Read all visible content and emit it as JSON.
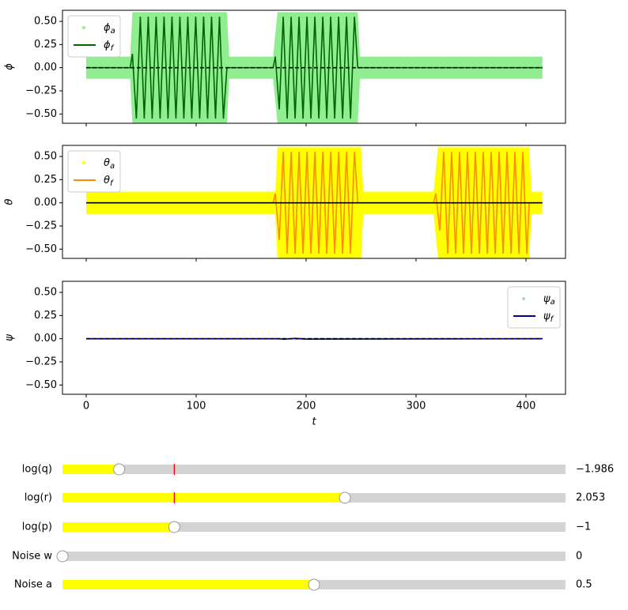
{
  "chart_data": [
    {
      "type": "line",
      "ylabel": "ϕ",
      "legend": "upper left",
      "grid": false,
      "xlim": [
        -21.6,
        436
      ],
      "ylim": [
        -0.6,
        0.62
      ],
      "xticks": [
        0,
        100,
        200,
        300,
        400
      ],
      "yticks": [
        {
          "value": -0.5,
          "label": "−0.50"
        },
        {
          "value": -0.25,
          "label": "−0.25"
        },
        {
          "value": 0,
          "label": "0.00"
        },
        {
          "value": 0.25,
          "label": "0.25"
        },
        {
          "value": 0.5,
          "label": "0.50"
        }
      ],
      "series": [
        {
          "name": "ϕ_a",
          "color": "#90ee90",
          "style": "band",
          "x": [
            0,
            40,
            42,
            128,
            130,
            170,
            174,
            247,
            249,
            415
          ],
          "high": [
            0.12,
            0.12,
            0.6,
            0.6,
            0.12,
            0.12,
            0.6,
            0.6,
            0.12,
            0.12
          ],
          "low": [
            -0.12,
            -0.12,
            -0.6,
            -0.6,
            -0.12,
            -0.12,
            -0.6,
            -0.6,
            -0.12,
            -0.12
          ]
        },
        {
          "name": "ϕ_f",
          "color": "#006400",
          "style": "line",
          "x": [
            0,
            40,
            42,
            45.6,
            49.2,
            52.8,
            56.4,
            60,
            63.6,
            67.2,
            70.8,
            74.4,
            78,
            81.6,
            85.2,
            88.8,
            92.4,
            96,
            99.6,
            103.2,
            106.8,
            110.4,
            114,
            117.6,
            121.2,
            124.8,
            128,
            170,
            172,
            175.6,
            179.2,
            182.8,
            186.4,
            190,
            193.6,
            197.2,
            200.8,
            204.4,
            208,
            211.6,
            215.2,
            218.8,
            222.4,
            226,
            229.6,
            233.2,
            236.8,
            240.4,
            244,
            247,
            415
          ],
          "values": [
            0,
            0,
            0.15,
            -0.55,
            0.55,
            -0.55,
            0.55,
            -0.55,
            0.55,
            -0.55,
            0.55,
            -0.55,
            0.55,
            -0.55,
            0.55,
            -0.55,
            0.55,
            -0.55,
            0.55,
            -0.55,
            0.55,
            -0.55,
            0.55,
            -0.55,
            0.55,
            -0.55,
            0,
            0,
            0.12,
            -0.45,
            0.55,
            -0.55,
            0.55,
            -0.55,
            0.55,
            -0.55,
            0.55,
            -0.55,
            0.55,
            -0.55,
            0.55,
            -0.55,
            0.55,
            -0.55,
            0.55,
            -0.55,
            0.55,
            -0.55,
            0.55,
            0,
            0
          ]
        },
        {
          "color": "#000000",
          "style": "line",
          "dash": true,
          "x": [
            0,
            415
          ],
          "values": [
            0,
            0
          ]
        }
      ]
    },
    {
      "type": "line",
      "ylabel": "θ",
      "legend": "upper left",
      "grid": false,
      "xlim": [
        -21.6,
        436
      ],
      "ylim": [
        -0.6,
        0.62
      ],
      "xticks": [
        0,
        100,
        200,
        300,
        400
      ],
      "yticks": [
        {
          "value": -0.5,
          "label": "−0.50"
        },
        {
          "value": -0.25,
          "label": "−0.25"
        },
        {
          "value": 0,
          "label": "0.00"
        },
        {
          "value": 0.25,
          "label": "0.25"
        },
        {
          "value": 0.5,
          "label": "0.50"
        }
      ],
      "series": [
        {
          "name": "θ_a",
          "color": "#ffff00",
          "style": "band",
          "x": [
            0,
            172,
            174,
            250,
            252,
            316,
            320,
            403,
            405,
            415
          ],
          "high": [
            0.12,
            0.12,
            0.6,
            0.6,
            0.12,
            0.12,
            0.6,
            0.6,
            0.12,
            0.12
          ],
          "low": [
            -0.12,
            -0.12,
            -0.6,
            -0.6,
            -0.12,
            -0.12,
            -0.6,
            -0.6,
            -0.12,
            -0.12
          ]
        },
        {
          "name": "θ_f",
          "color": "#ff8c00",
          "style": "line",
          "x": [
            0,
            170,
            172,
            175.6,
            179.2,
            182.8,
            186.4,
            190,
            193.6,
            197.2,
            200.8,
            204.4,
            208,
            211.6,
            215.2,
            218.8,
            222.4,
            226,
            229.6,
            233.2,
            236.8,
            240.4,
            244,
            247,
            316,
            318,
            321.6,
            325.2,
            328.8,
            332.4,
            336,
            339.6,
            343.2,
            346.8,
            350.4,
            354,
            357.6,
            361.2,
            364.8,
            368.4,
            372,
            375.6,
            379.2,
            382.8,
            386.4,
            390,
            393.6,
            397.2,
            400.8,
            403,
            415
          ],
          "values": [
            0,
            0,
            0.1,
            -0.4,
            0.55,
            -0.55,
            0.55,
            -0.55,
            0.55,
            -0.55,
            0.55,
            -0.55,
            0.55,
            -0.55,
            0.55,
            -0.55,
            0.55,
            -0.55,
            0.55,
            -0.55,
            0.55,
            -0.55,
            0.55,
            0,
            0,
            0.1,
            -0.3,
            0.55,
            -0.55,
            0.55,
            -0.55,
            0.55,
            -0.55,
            0.55,
            -0.55,
            0.55,
            -0.55,
            0.55,
            -0.55,
            0.55,
            -0.55,
            0.55,
            -0.55,
            0.55,
            -0.55,
            0.55,
            -0.55,
            0.55,
            -0.55,
            0,
            0
          ]
        },
        {
          "color": "#000000",
          "style": "line",
          "x": [
            0,
            415
          ],
          "values": [
            0,
            0
          ]
        }
      ]
    },
    {
      "type": "line",
      "ylabel": "ψ",
      "xlabel": "t",
      "legend": "upper right",
      "grid": false,
      "xlim": [
        -21.6,
        436
      ],
      "ylim": [
        -0.6,
        0.62
      ],
      "xticks": [
        0,
        100,
        200,
        300,
        400
      ],
      "yticks": [
        {
          "value": -0.5,
          "label": "−0.50"
        },
        {
          "value": -0.25,
          "label": "−0.25"
        },
        {
          "value": 0,
          "label": "0.00"
        },
        {
          "value": 0.25,
          "label": "0.25"
        },
        {
          "value": 0.5,
          "label": "0.50"
        }
      ],
      "series": [
        {
          "name": "ψ_a",
          "color": "#a8d8c8",
          "style": "band",
          "x": [
            0,
            415
          ],
          "high": [
            0.01,
            0.01
          ],
          "low": [
            -0.01,
            -0.01
          ]
        },
        {
          "name": "ψ_f",
          "color": "#00008b",
          "style": "line",
          "x": [
            0,
            175,
            180,
            190,
            200,
            415
          ],
          "values": [
            0,
            0,
            -0.006,
            0.004,
            -0.004,
            0
          ]
        },
        {
          "color": "#000000",
          "style": "line",
          "dash": true,
          "x": [
            0,
            415
          ],
          "values": [
            0,
            0
          ]
        }
      ]
    }
  ],
  "sliders": [
    {
      "label": "log(q)",
      "min": -3,
      "max": 6,
      "value": -1.986,
      "value_label": "−1.986",
      "init": -1
    },
    {
      "label": "log(r)",
      "min": -3,
      "max": 6,
      "value": 2.053,
      "init": -1
    },
    {
      "label": "log(p)",
      "min": -3,
      "max": 6,
      "value": -1,
      "value_label": "−1"
    },
    {
      "label": "Noise w",
      "min": 0,
      "max": 1,
      "value": 0
    },
    {
      "label": "Noise a",
      "min": 0,
      "max": 1,
      "value": 0.5
    }
  ]
}
